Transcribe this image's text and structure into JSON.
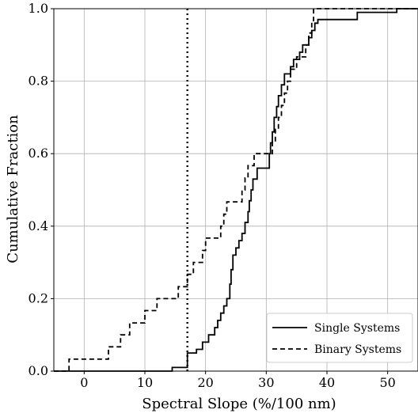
{
  "chart_data": {
    "type": "line",
    "title": "",
    "xlabel": "Spectral Slope (%/100 nm)",
    "ylabel": "Cumulative Fraction",
    "xlim": [
      -5,
      55
    ],
    "ylim": [
      0,
      1.0
    ],
    "x_ticks": [
      "0",
      "10",
      "20",
      "30",
      "40",
      "50"
    ],
    "y_ticks": [
      "0.0",
      "0.2",
      "0.4",
      "0.6",
      "0.8",
      "1.0"
    ],
    "grid": true,
    "legend_position": "lower-right",
    "reference_line": {
      "x": 17,
      "style": "dotted"
    },
    "series": [
      {
        "name": "Single Systems",
        "style": "solid",
        "points": [
          [
            -5,
            0
          ],
          [
            14.5,
            0
          ],
          [
            14.5,
            0.01
          ],
          [
            17,
            0.01
          ],
          [
            17,
            0.05
          ],
          [
            18.5,
            0.05
          ],
          [
            18.5,
            0.06
          ],
          [
            19.5,
            0.06
          ],
          [
            19.5,
            0.08
          ],
          [
            20.5,
            0.08
          ],
          [
            20.5,
            0.1
          ],
          [
            21.5,
            0.1
          ],
          [
            21.5,
            0.12
          ],
          [
            22,
            0.12
          ],
          [
            22,
            0.14
          ],
          [
            22.5,
            0.14
          ],
          [
            22.5,
            0.16
          ],
          [
            23,
            0.16
          ],
          [
            23,
            0.18
          ],
          [
            23.5,
            0.18
          ],
          [
            23.5,
            0.2
          ],
          [
            24,
            0.2
          ],
          [
            24,
            0.24
          ],
          [
            24.2,
            0.24
          ],
          [
            24.2,
            0.28
          ],
          [
            24.5,
            0.28
          ],
          [
            24.5,
            0.32
          ],
          [
            25,
            0.32
          ],
          [
            25,
            0.34
          ],
          [
            25.5,
            0.34
          ],
          [
            25.5,
            0.36
          ],
          [
            26,
            0.36
          ],
          [
            26,
            0.38
          ],
          [
            26.5,
            0.38
          ],
          [
            26.5,
            0.41
          ],
          [
            27,
            0.41
          ],
          [
            27,
            0.44
          ],
          [
            27.2,
            0.44
          ],
          [
            27.2,
            0.47
          ],
          [
            27.5,
            0.47
          ],
          [
            27.5,
            0.5
          ],
          [
            27.8,
            0.5
          ],
          [
            27.8,
            0.53
          ],
          [
            28.5,
            0.53
          ],
          [
            28.5,
            0.56
          ],
          [
            30.5,
            0.56
          ],
          [
            30.5,
            0.6
          ],
          [
            30.7,
            0.6
          ],
          [
            30.7,
            0.63
          ],
          [
            31,
            0.63
          ],
          [
            31,
            0.66
          ],
          [
            31.3,
            0.66
          ],
          [
            31.3,
            0.7
          ],
          [
            31.7,
            0.7
          ],
          [
            31.7,
            0.73
          ],
          [
            32,
            0.73
          ],
          [
            32,
            0.76
          ],
          [
            32.5,
            0.76
          ],
          [
            32.5,
            0.79
          ],
          [
            33,
            0.79
          ],
          [
            33,
            0.82
          ],
          [
            34,
            0.82
          ],
          [
            34,
            0.84
          ],
          [
            34.5,
            0.84
          ],
          [
            34.5,
            0.86
          ],
          [
            35.5,
            0.86
          ],
          [
            35.5,
            0.88
          ],
          [
            36,
            0.88
          ],
          [
            36,
            0.9
          ],
          [
            37,
            0.9
          ],
          [
            37,
            0.92
          ],
          [
            37.5,
            0.92
          ],
          [
            37.5,
            0.94
          ],
          [
            38,
            0.94
          ],
          [
            38,
            0.96
          ],
          [
            38.5,
            0.96
          ],
          [
            38.5,
            0.97
          ],
          [
            45,
            0.97
          ],
          [
            45,
            0.99
          ],
          [
            51.5,
            0.99
          ],
          [
            51.5,
            1.0
          ],
          [
            55,
            1.0
          ]
        ]
      },
      {
        "name": "Binary Systems",
        "style": "dashed",
        "points": [
          [
            -5,
            0
          ],
          [
            -2.5,
            0
          ],
          [
            -2.5,
            0.033
          ],
          [
            4,
            0.033
          ],
          [
            4,
            0.067
          ],
          [
            6,
            0.067
          ],
          [
            6,
            0.1
          ],
          [
            7.5,
            0.1
          ],
          [
            7.5,
            0.133
          ],
          [
            10,
            0.133
          ],
          [
            10,
            0.167
          ],
          [
            12,
            0.167
          ],
          [
            12,
            0.2
          ],
          [
            15.5,
            0.2
          ],
          [
            15.5,
            0.233
          ],
          [
            17,
            0.233
          ],
          [
            17,
            0.267
          ],
          [
            18,
            0.267
          ],
          [
            18,
            0.3
          ],
          [
            19.5,
            0.3
          ],
          [
            19.5,
            0.333
          ],
          [
            20,
            0.333
          ],
          [
            20,
            0.367
          ],
          [
            22.5,
            0.367
          ],
          [
            22.5,
            0.4
          ],
          [
            23,
            0.4
          ],
          [
            23,
            0.433
          ],
          [
            23.5,
            0.433
          ],
          [
            23.5,
            0.467
          ],
          [
            26,
            0.467
          ],
          [
            26,
            0.5
          ],
          [
            26.5,
            0.5
          ],
          [
            26.5,
            0.533
          ],
          [
            27,
            0.533
          ],
          [
            27,
            0.567
          ],
          [
            28,
            0.567
          ],
          [
            28,
            0.6
          ],
          [
            31,
            0.6
          ],
          [
            31,
            0.633
          ],
          [
            31.5,
            0.633
          ],
          [
            31.5,
            0.667
          ],
          [
            32,
            0.667
          ],
          [
            32,
            0.7
          ],
          [
            32.5,
            0.7
          ],
          [
            32.5,
            0.733
          ],
          [
            33,
            0.733
          ],
          [
            33,
            0.767
          ],
          [
            33.5,
            0.767
          ],
          [
            33.5,
            0.8
          ],
          [
            34,
            0.8
          ],
          [
            34,
            0.833
          ],
          [
            35,
            0.833
          ],
          [
            35,
            0.867
          ],
          [
            36.5,
            0.867
          ],
          [
            36.5,
            0.9
          ],
          [
            37,
            0.9
          ],
          [
            37,
            0.933
          ],
          [
            37.5,
            0.933
          ],
          [
            37.5,
            0.967
          ],
          [
            37.8,
            0.967
          ],
          [
            37.8,
            1.0
          ],
          [
            55,
            1.0
          ]
        ]
      }
    ]
  }
}
